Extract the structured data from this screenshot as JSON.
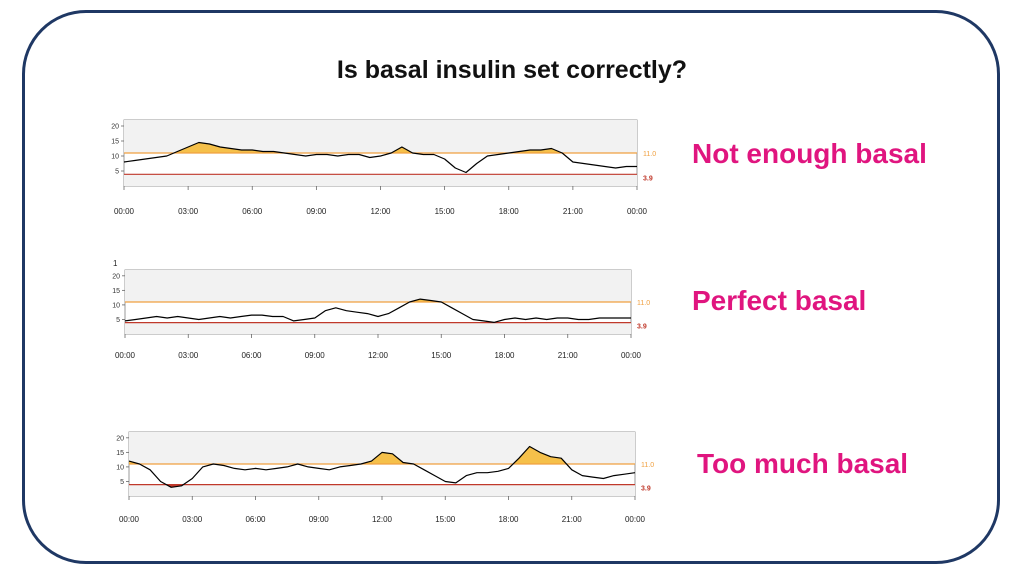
{
  "slide": {
    "title": "Is basal insulin set correctly?"
  },
  "panels": [
    {
      "caption": "Not enough basal"
    },
    {
      "caption": "Perfect basal"
    },
    {
      "caption": "Too much basal"
    }
  ],
  "colors": {
    "frame": "#1f3864",
    "caption": "#e0157f",
    "upper_line": "#f0a040",
    "lower_line": "#c0392b",
    "high_fill": "#f5c04a",
    "low_fill": "#c0392b",
    "trace": "#000000"
  },
  "chart_data": [
    {
      "type": "line",
      "x_ticks": [
        "00:00",
        "03:00",
        "06:00",
        "09:00",
        "12:00",
        "15:00",
        "18:00",
        "21:00",
        "00:00"
      ],
      "y_ticks": [
        "20",
        "15",
        "10",
        "5"
      ],
      "ylim": [
        0,
        22
      ],
      "upper_label": "11.0",
      "lower_label": "3.9",
      "upper": 11.0,
      "lower": 3.9,
      "series": [
        {
          "x": [
            0,
            0.5,
            1,
            1.5,
            2,
            2.5,
            3,
            3.5,
            4,
            4.5,
            5,
            5.5,
            6,
            6.5,
            7,
            7.5,
            8,
            8.5,
            9,
            9.5,
            10,
            10.5,
            11,
            11.5,
            12,
            12.5,
            13,
            13.5,
            14,
            14.5,
            15,
            15.5,
            16,
            16.5,
            17,
            17.5,
            18,
            18.5,
            19,
            19.5,
            20,
            20.5,
            21,
            21.5,
            22,
            22.5,
            23,
            23.5,
            24
          ],
          "y": [
            8,
            8.5,
            9,
            9.5,
            10,
            11.5,
            13,
            14.5,
            14,
            13,
            12.5,
            12,
            12,
            11.5,
            11.5,
            11,
            10.5,
            10,
            10.5,
            10.5,
            10,
            10.5,
            10.5,
            9.5,
            10,
            11,
            13,
            11,
            10.5,
            10.5,
            9,
            6,
            4.5,
            7.5,
            10,
            10.5,
            11,
            11.5,
            12,
            12,
            12.5,
            11,
            8,
            7.5,
            7,
            6.5,
            6,
            6.5,
            6.5
          ]
        }
      ]
    },
    {
      "type": "line",
      "x_ticks": [
        "00:00",
        "03:00",
        "06:00",
        "09:00",
        "12:00",
        "15:00",
        "18:00",
        "21:00",
        "00:00"
      ],
      "y_ticks": [
        "20",
        "15",
        "10",
        "5"
      ],
      "ylim": [
        0,
        22
      ],
      "corner_label": "1",
      "upper_label": "11.0",
      "lower_label": "3.9",
      "upper": 11.0,
      "lower": 3.9,
      "series": [
        {
          "x": [
            0,
            0.5,
            1,
            1.5,
            2,
            2.5,
            3,
            3.5,
            4,
            4.5,
            5,
            5.5,
            6,
            6.5,
            7,
            7.5,
            8,
            8.5,
            9,
            9.5,
            10,
            10.5,
            11,
            11.5,
            12,
            12.5,
            13,
            13.5,
            14,
            14.5,
            15,
            15.5,
            16,
            16.5,
            17,
            17.5,
            18,
            18.5,
            19,
            19.5,
            20,
            20.5,
            21,
            21.5,
            22,
            22.5,
            23,
            23.5,
            24
          ],
          "y": [
            4.5,
            5,
            5.5,
            6,
            5.5,
            6,
            5.5,
            5,
            5.5,
            6,
            5.5,
            6,
            6.5,
            6.5,
            6,
            6,
            4.5,
            5,
            5.5,
            8,
            9,
            8,
            7.5,
            7,
            6,
            7,
            9,
            11,
            12,
            11.5,
            11,
            9,
            7,
            5,
            4.5,
            4,
            5,
            5.5,
            5,
            5.5,
            5,
            5.5,
            5.5,
            5,
            5,
            5.5,
            5.5,
            5.5,
            5.5
          ]
        }
      ]
    },
    {
      "type": "line",
      "x_ticks": [
        "00:00",
        "03:00",
        "06:00",
        "09:00",
        "12:00",
        "15:00",
        "18:00",
        "21:00",
        "00:00"
      ],
      "y_ticks": [
        "20",
        "15",
        "10",
        "5"
      ],
      "ylim": [
        0,
        22
      ],
      "upper_label": "11.0",
      "lower_label": "3.9",
      "upper": 11.0,
      "lower": 3.9,
      "series": [
        {
          "x": [
            0,
            0.5,
            1,
            1.5,
            2,
            2.5,
            3,
            3.5,
            4,
            4.5,
            5,
            5.5,
            6,
            6.5,
            7,
            7.5,
            8,
            8.5,
            9,
            9.5,
            10,
            10.5,
            11,
            11.5,
            12,
            12.5,
            13,
            13.5,
            14,
            14.5,
            15,
            15.5,
            16,
            16.5,
            17,
            17.5,
            18,
            18.5,
            19,
            19.5,
            20,
            20.5,
            21,
            21.5,
            22,
            22.5,
            23,
            23.5,
            24
          ],
          "y": [
            12,
            11,
            9,
            5,
            3,
            3.5,
            6,
            10,
            11,
            10.5,
            9.5,
            9,
            9.5,
            9,
            9.5,
            10,
            11,
            10,
            9.5,
            9,
            10,
            10.5,
            11,
            12,
            15,
            14.5,
            11.5,
            11,
            9,
            7,
            5,
            4.5,
            7,
            8,
            8,
            8.5,
            9.5,
            13,
            17,
            15,
            13.5,
            13,
            9,
            7,
            6.5,
            6,
            7,
            7.5,
            8
          ]
        }
      ]
    }
  ]
}
